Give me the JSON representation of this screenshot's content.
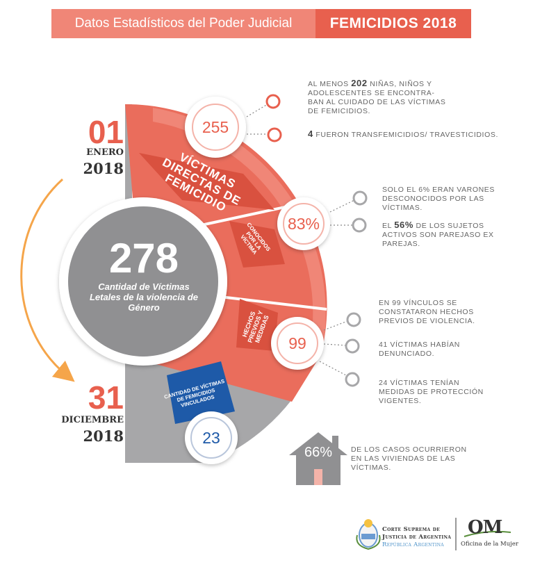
{
  "header": {
    "left": "Datos Estadísticos del Poder Judicial",
    "right": "FEMICIDIOS 2018"
  },
  "start_date": {
    "day": "01",
    "month": "ENERO",
    "year": "2018"
  },
  "end_date": {
    "day": "31",
    "month": "DICIEMBRE",
    "year": "2018"
  },
  "total": {
    "value": "278",
    "description": "Cantidad de Víctimas Letales de la violencia de Género"
  },
  "direct_victims": {
    "value": "255",
    "label": "VÍCTIMAS DIRECTAS DE FEMICIDIO"
  },
  "known": {
    "value": "83%",
    "label": "CONOCIDOS POR LA VÍCTIMA"
  },
  "previous": {
    "value": "99",
    "label": "HECHOS PREVIOS Y MEDIDAS"
  },
  "linked": {
    "value": "23",
    "label": "CANTIDAD DE VÍCTIMAS DE FEMICIDIOS VINCULADOS"
  },
  "notes": {
    "n1_pre": "AL MENOS",
    "n1_num": "202",
    "n1_post": "NIÑAS, NIÑOS Y ADOLESCENTES SE ENCONTRA-BAN AL CUIDADO DE LAS VÍCTIMAS DE FEMICIDIOS.",
    "n2_num": "4",
    "n2_post": "FUERON TRANSFEMICIDIOS/ TRAVESTICIDIOS.",
    "n3": "SOLO EL 6% ERAN VARONES DESCONOCIDOS POR LAS VÍCTIMAS.",
    "n4_pre": "EL",
    "n4_num": "56%",
    "n4_post": "DE LOS SUJETOS ACTIVOS SON PAREJASO EX PAREJAS.",
    "n5": "EN 99 VÍNCULOS SE CONSTATARON HECHOS PREVIOS DE VIOLENCIA.",
    "n6": "41 VÍCTIMAS HABÍAN DENUNCIADO.",
    "n7": "24 VÍCTIMAS TENÍAN MEDIDAS DE PROTECCIÓN VIGENTES."
  },
  "house": {
    "value": "66%",
    "text": "DE LOS CASOS OCURRIERON EN LAS VIVIENDAS DE LAS VÍCTIMAS."
  },
  "footer": {
    "line1": "Corte Suprema de",
    "line2": "Justicia de Argentina",
    "line3": "República Argentina",
    "om": "OM",
    "om_sub": "Oficina de la Mujer"
  },
  "colors": {
    "salmon": "#f08677",
    "coral": "#e8604e",
    "gray": "#a7a7a9",
    "dark_gray": "#8f8f91",
    "blue": "#1e5aa8",
    "orange_arrow": "#f5a54a"
  }
}
